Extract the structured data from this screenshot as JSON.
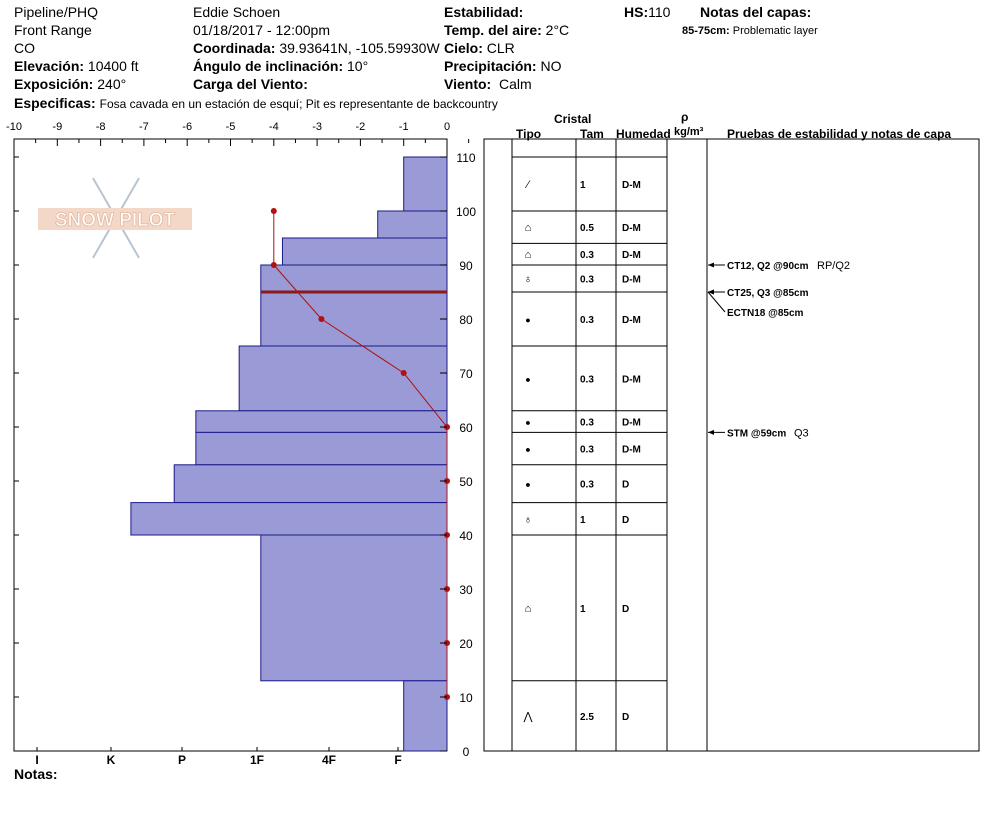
{
  "header": {
    "site": "Pipeline/PHQ",
    "range": "Front Range",
    "state": "CO",
    "elevation_label": "Elevación:",
    "elevation": "10400 ft",
    "aspect_label": "Exposición:",
    "aspect": "240°",
    "specifics_label": "Especificas:",
    "specifics": "Fosa cavada en un estación de esquí; Pit es representante de backcountry",
    "observer": "Eddie Schoen",
    "datetime": "01/18/2017 - 12:00pm",
    "coord_label": "Coordinada:",
    "coord": "39.93641N, -105.59930W",
    "slope_label": "Ángulo de inclinación:",
    "slope": "10°",
    "wind_load_label": "Carga del Viento:",
    "wind_load": "",
    "stability_label": "Estabilidad:",
    "stability": "",
    "air_temp_label": "Temp. del aire:",
    "air_temp": "2°C",
    "sky_label": "Cielo:",
    "sky": "CLR",
    "precip_label": "Precipitación:",
    "precip": "NO",
    "wind_label": "Viento:",
    "wind": "Calm",
    "hs_label": "HS:",
    "hs": "110",
    "layer_notes_label": "Notas del capas:",
    "layer_note_range": "85-75cm:",
    "layer_note_text": "Problematic layer",
    "notes_label": "Notas:"
  },
  "logo": {
    "text": "SNOW PILOT"
  },
  "colors": {
    "hardness_fill": "#9a9ad6",
    "hardness_stroke": "#1a1a8a",
    "temp": "#b01010",
    "weak_layer": "#8b1a1a"
  },
  "columns": {
    "crystal": "Cristal",
    "type": "Tipo",
    "size": "Tam",
    "moisture": "Humedad",
    "density_symbol": "ρ",
    "density_unit": "kg/m³",
    "tests": "Pruebas de estabilidad y notas de capa"
  },
  "chart_data": {
    "type": "snow_profile",
    "temp_axis": {
      "ticks": [
        "-10",
        "-9",
        "-8",
        "-7",
        "-6",
        "-5",
        "-4",
        "-3",
        "-2",
        "-1",
        "0"
      ],
      "range": [
        -10,
        0
      ]
    },
    "height_axis": {
      "ticks": [
        "0",
        "10",
        "20",
        "30",
        "40",
        "50",
        "60",
        "70",
        "80",
        "90",
        "100",
        "110"
      ],
      "range": [
        0,
        110
      ]
    },
    "hardness_axis": [
      "I",
      "K",
      "P",
      "1F",
      "4F",
      "F"
    ],
    "hardness_layers": [
      {
        "top": 110,
        "bottom": 100,
        "hardness": 1
      },
      {
        "top": 100,
        "bottom": 95,
        "hardness": 1.6
      },
      {
        "top": 95,
        "bottom": 90,
        "hardness": 3.8
      },
      {
        "top": 90,
        "bottom": 75,
        "hardness": 4.3
      },
      {
        "top": 75,
        "bottom": 63,
        "hardness": 4.8
      },
      {
        "top": 63,
        "bottom": 59,
        "hardness": 5.8
      },
      {
        "top": 59,
        "bottom": 53,
        "hardness": 5.8
      },
      {
        "top": 53,
        "bottom": 46,
        "hardness": 6.3
      },
      {
        "top": 46,
        "bottom": 40,
        "hardness": 7.3
      },
      {
        "top": 40,
        "bottom": 13,
        "hardness": 4.3
      },
      {
        "top": 13,
        "bottom": 0,
        "hardness": 1
      }
    ],
    "weak_layer_height": 85,
    "temperature_profile": [
      {
        "h": 100,
        "t": -4
      },
      {
        "h": 90,
        "t": -4
      },
      {
        "h": 80,
        "t": -2.9
      },
      {
        "h": 70,
        "t": -1
      },
      {
        "h": 60,
        "t": 0
      },
      {
        "h": 50,
        "t": 0
      },
      {
        "h": 40,
        "t": 0
      },
      {
        "h": 30,
        "t": 0
      },
      {
        "h": 20,
        "t": 0
      },
      {
        "h": 10,
        "t": 0
      }
    ],
    "layers": [
      {
        "top": 110,
        "bottom": 100,
        "grain": "precip-particles",
        "size": "1",
        "moisture": "D-M"
      },
      {
        "top": 100,
        "bottom": 94,
        "grain": "faceted",
        "size": "0.5",
        "moisture": "D-M"
      },
      {
        "top": 94,
        "bottom": 90,
        "grain": "faceted",
        "size": "0.3",
        "moisture": "D-M"
      },
      {
        "top": 90,
        "bottom": 85,
        "grain": "mixed-forms",
        "size": "0.3",
        "moisture": "D-M"
      },
      {
        "top": 85,
        "bottom": 75,
        "grain": "rounded",
        "size": "0.3",
        "moisture": "D-M"
      },
      {
        "top": 75,
        "bottom": 63,
        "grain": "rounded",
        "size": "0.3",
        "moisture": "D-M"
      },
      {
        "top": 63,
        "bottom": 59,
        "grain": "rounded",
        "size": "0.3",
        "moisture": "D-M"
      },
      {
        "top": 59,
        "bottom": 53,
        "grain": "rounded",
        "size": "0.3",
        "moisture": "D-M"
      },
      {
        "top": 53,
        "bottom": 46,
        "grain": "rounded",
        "size": "0.3",
        "moisture": "D"
      },
      {
        "top": 46,
        "bottom": 40,
        "grain": "mixed-forms",
        "size": "1",
        "moisture": "D"
      },
      {
        "top": 40,
        "bottom": 13,
        "grain": "faceted",
        "size": "1",
        "moisture": "D"
      },
      {
        "top": 13,
        "bottom": 0,
        "grain": "depth-hoar",
        "size": "2.5",
        "moisture": "D"
      }
    ],
    "tests": [
      {
        "h": 90,
        "label": "CT12, Q2 @90cm",
        "extra": "RP/Q2"
      },
      {
        "h": 85,
        "label": "CT25, Q3 @85cm",
        "extra": ""
      },
      {
        "h": 85,
        "label": "ECTN18 @85cm",
        "extra": ""
      },
      {
        "h": 59,
        "label": "STM @59cm",
        "extra": "Q3"
      }
    ]
  }
}
